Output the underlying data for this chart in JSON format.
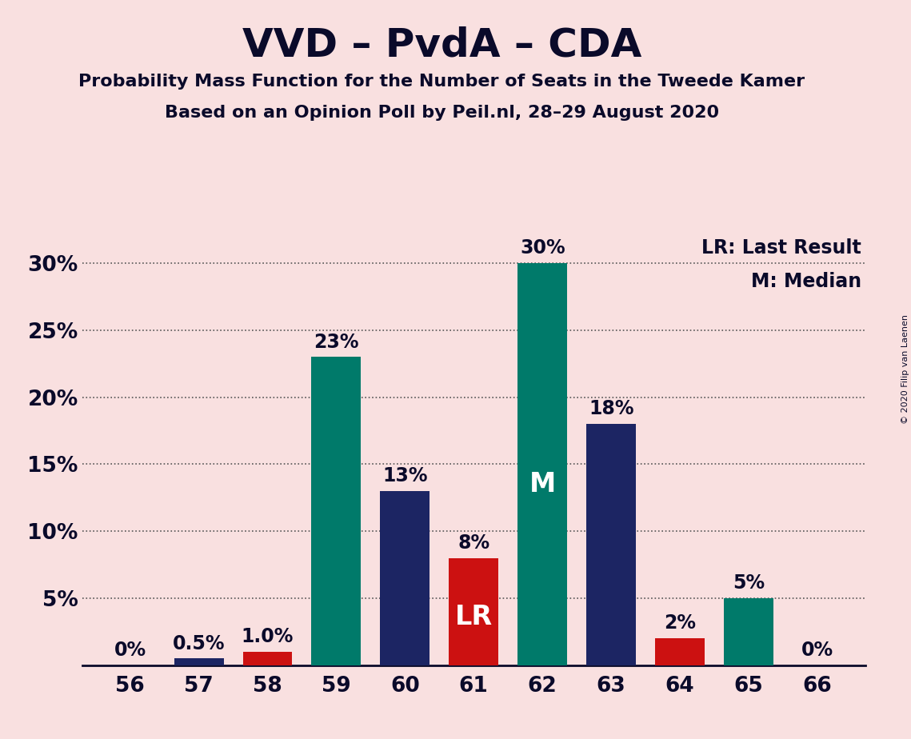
{
  "title": "VVD – PvdA – CDA",
  "subtitle1": "Probability Mass Function for the Number of Seats in the Tweede Kamer",
  "subtitle2": "Based on an Opinion Poll by Peil.nl, 28–29 August 2020",
  "copyright": "© 2020 Filip van Laenen",
  "legend_lr": "LR: Last Result",
  "legend_m": "M: Median",
  "seats": [
    56,
    57,
    58,
    59,
    60,
    61,
    62,
    63,
    64,
    65,
    66
  ],
  "values": [
    0.0,
    0.5,
    1.0,
    23.0,
    13.0,
    8.0,
    30.0,
    18.0,
    2.0,
    5.0,
    0.0
  ],
  "labels": [
    "0%",
    "0.5%",
    "1.0%",
    "23%",
    "13%",
    "8%",
    "30%",
    "18%",
    "2%",
    "5%",
    "0%"
  ],
  "bar_colors": [
    "#f9e0e0",
    "#1c2563",
    "#cc1111",
    "#007a6a",
    "#1c2563",
    "#cc1111",
    "#007a6a",
    "#1c2563",
    "#cc1111",
    "#007a6a",
    "#f9e0e0"
  ],
  "median_seat": 62,
  "lr_seat": 61,
  "background_color": "#f9e0e0",
  "title_color": "#0a0a2a",
  "bar_width": 0.72,
  "ylim": [
    0,
    32
  ],
  "yticks": [
    5,
    10,
    15,
    20,
    25,
    30
  ],
  "ytick_labels": [
    "5%",
    "10%",
    "15%",
    "20%",
    "25%",
    "30%"
  ],
  "grid_color": "#555555",
  "label_fontsize": 17,
  "title_fontsize": 36,
  "subtitle_fontsize": 16,
  "axis_fontsize": 19
}
